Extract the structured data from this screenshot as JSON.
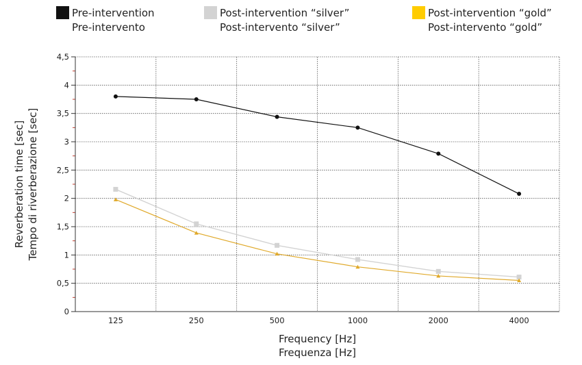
{
  "chart_data": {
    "type": "line",
    "categories": [
      "125",
      "250",
      "500",
      "1000",
      "2000",
      "4000"
    ],
    "xlabel": [
      "Frequency [Hz]",
      "Frequenza [Hz]"
    ],
    "ylabel": [
      "Reverberation time [sec]",
      "Tempo di riverberazione [sec]"
    ],
    "ylim": [
      0,
      4.5
    ],
    "yticks": [
      "0",
      "0,5",
      "1",
      "1,5",
      "2",
      "2,5",
      "3",
      "3,5",
      "4",
      "4,5"
    ],
    "grid": true,
    "legend_position": "top",
    "series": [
      {
        "name": [
          "Pre-intervention",
          "Pre-intervento"
        ],
        "color": "#111111",
        "marker": "circle",
        "values": [
          3.8,
          3.75,
          3.44,
          3.25,
          2.79,
          2.08
        ]
      },
      {
        "name": [
          "Post-intervention “silver”",
          "Post-intervento “silver”"
        ],
        "color": "#d3d3d3",
        "marker": "square",
        "values": [
          2.16,
          1.55,
          1.17,
          0.92,
          0.71,
          0.61
        ]
      },
      {
        "name": [
          "Post-intervention “gold”",
          "Post-intervento “gold”"
        ],
        "color": "#e0a92a",
        "swatch_color": "#ffcc00",
        "marker": "triangle",
        "values": [
          1.98,
          1.39,
          1.02,
          0.79,
          0.63,
          0.55
        ]
      }
    ]
  }
}
